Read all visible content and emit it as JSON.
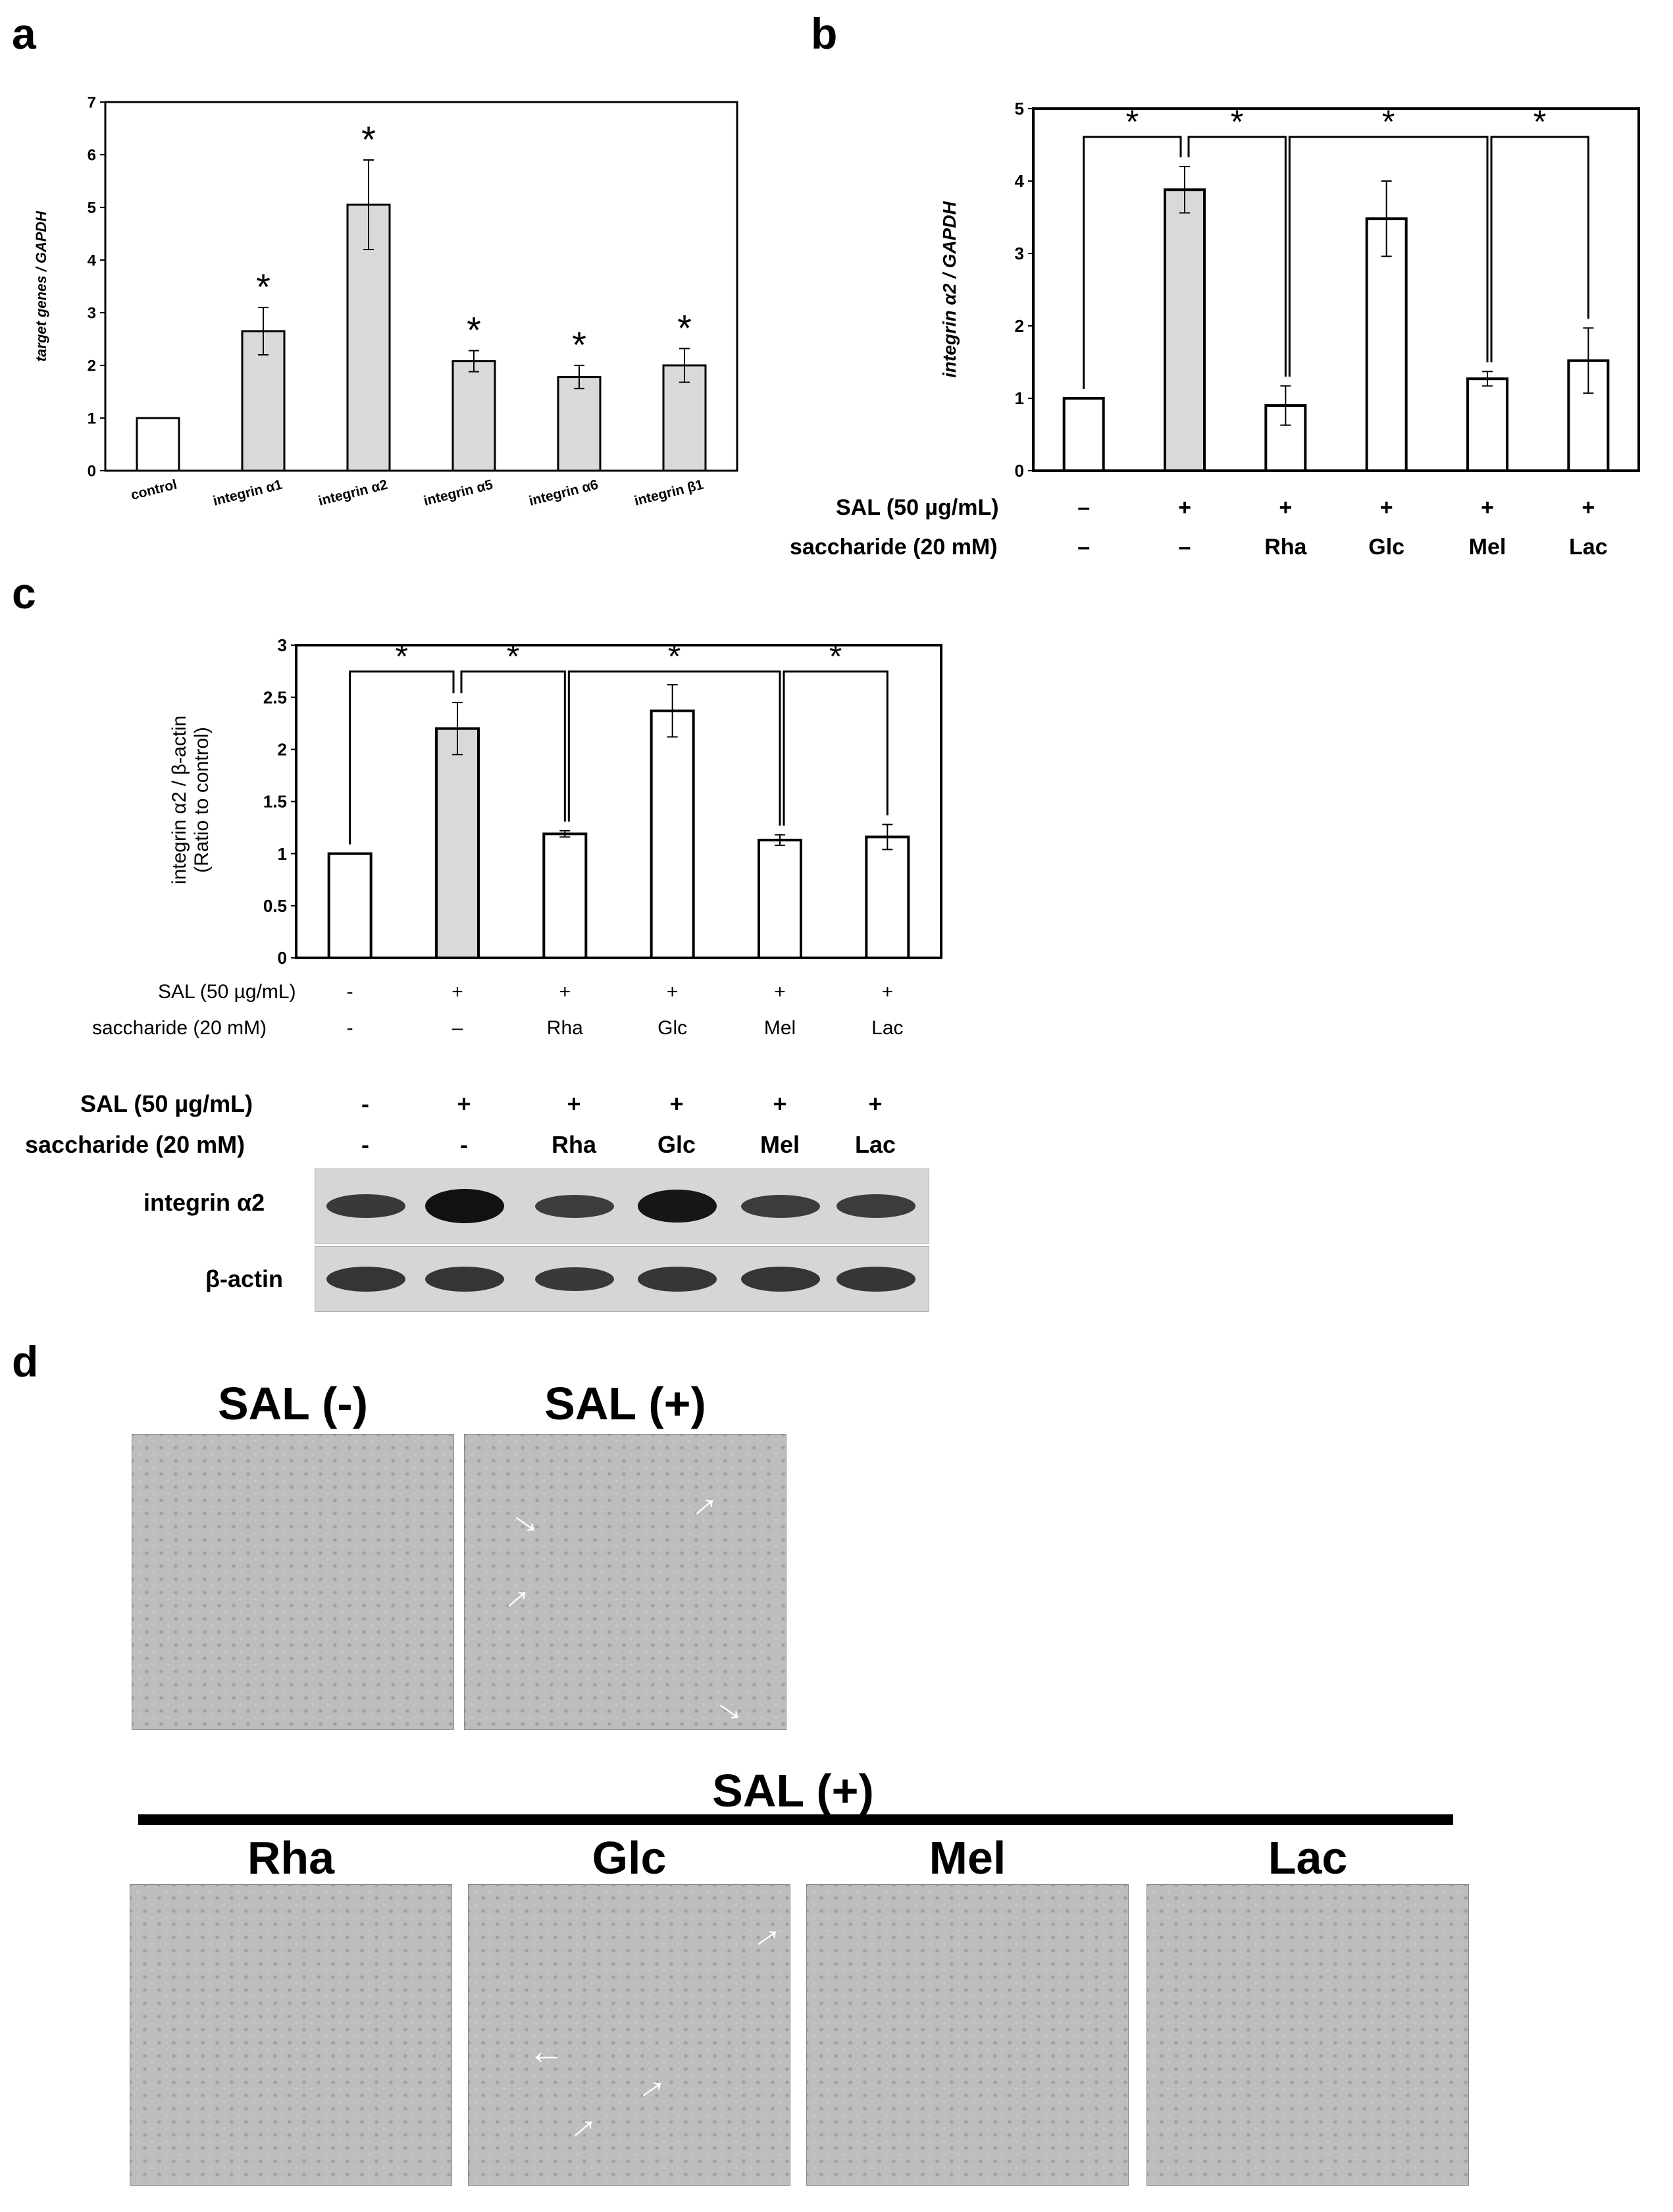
{
  "panels": {
    "a": "a",
    "b": "b",
    "c": "c",
    "d": "d"
  },
  "chart_data": [
    {
      "panel": "a",
      "type": "bar",
      "ylabel": "target genes / GAPDH",
      "ylim": [
        0,
        7
      ],
      "yticks": [
        "0",
        "1",
        "2",
        "3",
        "4",
        "5",
        "6",
        "7"
      ],
      "categories": [
        "control",
        "integrin α1",
        "integrin α2",
        "integrin α5",
        "integrin α6",
        "integrin β1"
      ],
      "values": [
        1.0,
        2.65,
        5.05,
        2.08,
        1.78,
        2.0
      ],
      "errors": [
        0.0,
        0.45,
        0.85,
        0.2,
        0.22,
        0.32
      ],
      "fills": [
        "#ffffff",
        "#d9d9d9",
        "#d9d9d9",
        "#d9d9d9",
        "#d9d9d9",
        "#d9d9d9"
      ],
      "significance": [
        "",
        "*",
        "*",
        "*",
        "*",
        "*"
      ]
    },
    {
      "panel": "b",
      "type": "bar",
      "ylabel": "integrin α2 / GAPDH",
      "ylim": [
        0,
        5
      ],
      "yticks": [
        "0",
        "1",
        "2",
        "3",
        "4",
        "5"
      ],
      "values": [
        1.0,
        3.88,
        0.9,
        3.48,
        1.27,
        1.52
      ],
      "errors": [
        0.0,
        0.32,
        0.27,
        0.52,
        0.1,
        0.45
      ],
      "fills": [
        "#ffffff",
        "#d9d9d9",
        "#ffffff",
        "#ffffff",
        "#ffffff",
        "#ffffff"
      ],
      "conditions": {
        "sal_label": "SAL (50 µg/mL)",
        "sal": [
          "–",
          "+",
          "+",
          "+",
          "+",
          "+"
        ],
        "sacch_label": "saccharide (20 mM)",
        "sacch": [
          "–",
          "–",
          "Rha",
          "Glc",
          "Mel",
          "Lac"
        ]
      },
      "brackets": [
        {
          "from": 0,
          "to": 1,
          "star": "*"
        },
        {
          "from": 1,
          "to": 2,
          "star": "*"
        },
        {
          "from": 2,
          "to": 4,
          "star": "*"
        },
        {
          "from": 4,
          "to": 5,
          "star": "*"
        }
      ]
    },
    {
      "panel": "c",
      "type": "bar",
      "ylabel_lines": [
        "integrin α2 / β-actin",
        "(Ratio to control)"
      ],
      "ylim": [
        0,
        3
      ],
      "yticks": [
        "0",
        "0.5",
        "1",
        "1.5",
        "2",
        "2.5",
        "3"
      ],
      "values": [
        1.0,
        2.2,
        1.19,
        2.37,
        1.13,
        1.16
      ],
      "errors": [
        0.0,
        0.25,
        0.03,
        0.25,
        0.05,
        0.12
      ],
      "fills": [
        "#ffffff",
        "#d9d9d9",
        "#ffffff",
        "#ffffff",
        "#ffffff",
        "#ffffff"
      ],
      "conditions": {
        "sal_label": "SAL (50 µg/mL)",
        "sal": [
          "-",
          "+",
          "+",
          "+",
          "+",
          "+"
        ],
        "sacch_label": "saccharide (20 mM)",
        "sacch": [
          "-",
          "–",
          "Rha",
          "Glc",
          "Mel",
          "Lac"
        ]
      },
      "brackets": [
        {
          "from": 0,
          "to": 1,
          "star": "*"
        },
        {
          "from": 1,
          "to": 2,
          "star": "*"
        },
        {
          "from": 2,
          "to": 4,
          "star": "*"
        },
        {
          "from": 4,
          "to": 5,
          "star": "*"
        }
      ]
    }
  ],
  "western": {
    "sal_label": "SAL (50 µg/mL)",
    "sal": [
      "-",
      "+",
      "+",
      "+",
      "+",
      "+"
    ],
    "sacch_label": "saccharide (20 mM)",
    "sacch": [
      "-",
      "-",
      "Rha",
      "Glc",
      "Mel",
      "Lac"
    ],
    "rows": [
      {
        "label": "integrin α2",
        "intensity": [
          0.55,
          1.0,
          0.5,
          0.95,
          0.5,
          0.52
        ]
      },
      {
        "label": "β-actin",
        "intensity": [
          0.6,
          0.6,
          0.55,
          0.58,
          0.6,
          0.58
        ]
      }
    ]
  },
  "micrographs": {
    "top": [
      "SAL (-)",
      "SAL (+)"
    ],
    "group_label": "SAL (+)",
    "bottom": [
      "Rha",
      "Glc",
      "Mel",
      "Lac"
    ]
  }
}
